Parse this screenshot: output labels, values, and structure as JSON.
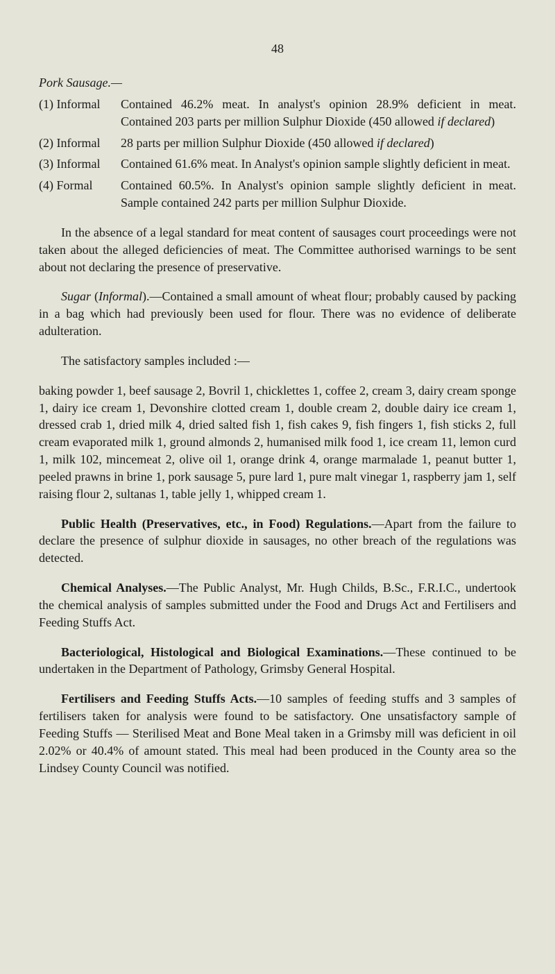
{
  "page_number": "48",
  "section_title": "Pork Sausage.—",
  "entries": [
    {
      "label": "(1) Informal",
      "text_parts": [
        {
          "t": "Contained 46.2% meat.  In analyst's opinion 28.9% deficient in meat.  Contained 203 parts per million Sulphur Dioxide (450 allowed ",
          "i": false
        },
        {
          "t": "if declared",
          "i": true
        },
        {
          "t": ")",
          "i": false
        }
      ]
    },
    {
      "label": "(2) Informal",
      "text_parts": [
        {
          "t": "28 parts per million Sulphur Dioxide (450 allowed ",
          "i": false
        },
        {
          "t": "if declared",
          "i": true
        },
        {
          "t": ")",
          "i": false
        }
      ]
    },
    {
      "label": "(3) Informal",
      "text_parts": [
        {
          "t": "Contained 61.6% meat.  In Analyst's opinion sample slightly deficient in meat.",
          "i": false
        }
      ]
    },
    {
      "label": "(4) Formal",
      "text_parts": [
        {
          "t": "Contained 60.5%.  In Analyst's opinion sample slightly deficient in meat.  Sample contained 242 parts per million Sulphur Dioxide.",
          "i": false
        }
      ]
    }
  ],
  "paragraphs": [
    {
      "parts": [
        {
          "t": "In the absence of a legal standard for meat content of sausages court proceedings were not taken about the alleged deficiencies of meat.  The Committee authorised warnings to be sent about not declaring the presence of preservative.",
          "i": false,
          "b": false
        }
      ]
    },
    {
      "parts": [
        {
          "t": "Sugar",
          "i": true,
          "b": false
        },
        {
          "t": " (",
          "i": false,
          "b": false
        },
        {
          "t": "Informal",
          "i": true,
          "b": false
        },
        {
          "t": ").—Contained a small amount of wheat flour; probably caused by packing in a bag which had previously been used for flour.  There was no evidence of deliberate adulteration.",
          "i": false,
          "b": false
        }
      ]
    },
    {
      "parts": [
        {
          "t": "The satisfactory samples included :—",
          "i": false,
          "b": false
        }
      ]
    },
    {
      "parts": [
        {
          "t": "baking powder 1, beef sausage 2, Bovril 1, chicklettes 1, coffee 2, cream 3, dairy cream sponge 1, dairy ice cream 1, Devonshire clotted cream 1, double cream 2, double dairy ice cream 1, dressed crab 1, dried milk 4, dried salted fish 1, fish cakes 9, fish fingers 1, fish sticks 2, full cream evaporated milk 1, ground almonds 2, humanised milk food 1, ice cream 11, lemon curd 1, milk 102, mincemeat 2, olive oil 1, orange drink 4, orange marmalade 1, peanut butter 1, peeled prawns in brine 1, pork sausage 5, pure lard 1, pure malt vinegar 1, raspberry jam 1, self raising flour 2, sultanas 1, table jelly 1, whipped cream 1.",
          "i": false,
          "b": false
        }
      ]
    },
    {
      "parts": [
        {
          "t": "Public Health (Preservatives, etc., in Food) Regulations.",
          "i": false,
          "b": true
        },
        {
          "t": "—Apart from the failure to declare the presence of sulphur dioxide in sausages, no other breach of the regulations was detected.",
          "i": false,
          "b": false
        }
      ]
    },
    {
      "parts": [
        {
          "t": "Chemical Analyses.",
          "i": false,
          "b": true
        },
        {
          "t": "—The Public Analyst, Mr. Hugh Childs, B.Sc., F.R.I.C., undertook the chemical analysis of samples submitted under the Food and Drugs Act and Fertilisers and Feeding Stuffs Act.",
          "i": false,
          "b": false
        }
      ]
    },
    {
      "parts": [
        {
          "t": "Bacteriological, Histological and Biological Examinations.",
          "i": false,
          "b": true
        },
        {
          "t": "—These continued to be undertaken in the Department of Pathology, Grimsby General Hospital.",
          "i": false,
          "b": false
        }
      ]
    },
    {
      "parts": [
        {
          "t": "Fertilisers and Feeding Stuffs Acts.",
          "i": false,
          "b": true
        },
        {
          "t": "—10 samples of feeding stuffs and 3 samples of fertilisers taken for analysis were found to be satisfactory.  One unsatisfactory sample of Feeding Stuffs — Sterilised Meat and Bone Meal taken in a Grimsby mill was deficient in oil 2.02% or 40.4% of amount stated.  This meal had been produced in the County area so the Lindsey County Council was notified.",
          "i": false,
          "b": false
        }
      ]
    }
  ]
}
